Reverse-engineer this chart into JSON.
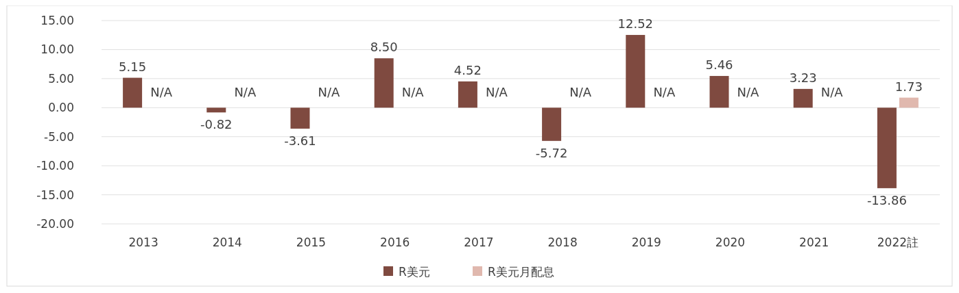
{
  "chart_data": {
    "type": "bar",
    "categories": [
      "2013",
      "2014",
      "2015",
      "2016",
      "2017",
      "2018",
      "2019",
      "2020",
      "2021",
      "2022註"
    ],
    "series": [
      {
        "name": "R美元",
        "color": "#7f4a40",
        "values": [
          5.15,
          -0.82,
          -3.61,
          8.5,
          4.52,
          -5.72,
          12.52,
          5.46,
          3.23,
          -13.86
        ],
        "value_labels": [
          "5.15",
          "-0.82",
          "-3.61",
          "8.50",
          "4.52",
          "-5.72",
          "12.52",
          "5.46",
          "3.23",
          "-13.86"
        ]
      },
      {
        "name": "R美元月配息",
        "color": "#e0b8ae",
        "values": [
          null,
          null,
          null,
          null,
          null,
          null,
          null,
          null,
          null,
          1.73
        ],
        "value_labels": [
          "N/A",
          "N/A",
          "N/A",
          "N/A",
          "N/A",
          "N/A",
          "N/A",
          "N/A",
          "N/A",
          "1.73"
        ]
      }
    ],
    "ylim": [
      -20,
      15
    ],
    "yticks": [
      {
        "value": -20,
        "label": "-20.00"
      },
      {
        "value": -15,
        "label": "-15.00"
      },
      {
        "value": -10,
        "label": "-10.00"
      },
      {
        "value": -5,
        "label": "-5.00"
      },
      {
        "value": 0,
        "label": "0.00"
      },
      {
        "value": 5,
        "label": "5.00"
      },
      {
        "value": 10,
        "label": "10.00"
      },
      {
        "value": 15,
        "label": "15.00"
      }
    ],
    "grid": "y",
    "legend": "bottom"
  }
}
